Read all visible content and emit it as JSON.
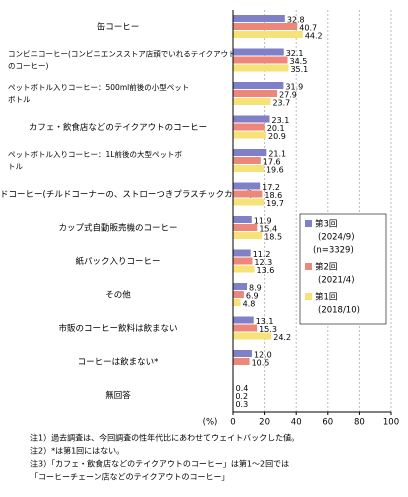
{
  "chart_data": {
    "type": "barh",
    "categories": [
      [
        "缶コーヒー"
      ],
      [
        "コンビニコーヒー(コンビニエンスストア店頭でいれるテイクアウト",
        "のコーヒー)"
      ],
      [
        "ペットボトル入りコーヒー：500ml前後の小型ペット",
        "ボトル"
      ],
      [
        "カフェ・飲食店などのテイクアウトのコーヒー"
      ],
      [
        "ペットボトル入りコーヒー：1L前後の大型ペットボ",
        "トル"
      ],
      [
        "チルドコーヒー(チルドコーナーの、ストローつきプラスチックカップ)"
      ],
      [
        "カップ式自動販売機のコーヒー"
      ],
      [
        "紙パック入りコーヒー"
      ],
      [
        "その他"
      ],
      [
        "市販のコーヒー飲料は飲まない"
      ],
      [
        "コーヒーは飲まない*"
      ],
      [
        "無回答"
      ]
    ],
    "series": [
      {
        "name": "第3回",
        "period": "(2024/9)",
        "n": "(n=3329)",
        "color": "#7f80c8",
        "values": [
          32.8,
          32.1,
          31.9,
          23.1,
          21.1,
          17.2,
          11.9,
          11.2,
          8.9,
          13.1,
          12.0,
          0.4
        ],
        "value_labels": [
          "32.8",
          "32.1",
          "31.9",
          "23.1",
          "21.1",
          "17.2",
          "11.9",
          "11.2",
          "8.9",
          "13.1",
          "12.0",
          "0.4"
        ]
      },
      {
        "name": "第2回",
        "period": "(2021/4)",
        "color": "#ec8779",
        "values": [
          40.7,
          34.5,
          27.9,
          20.1,
          17.6,
          18.6,
          15.4,
          12.3,
          6.9,
          15.3,
          10.5,
          0.2
        ]
      },
      {
        "name": "第1回",
        "period": "(2018/10)",
        "color": "#f7e277",
        "values": [
          44.2,
          35.1,
          23.7,
          20.9,
          19.6,
          19.7,
          18.5,
          13.6,
          4.8,
          24.2,
          null,
          0.3
        ]
      }
    ],
    "xlim": [
      0,
      100
    ],
    "xticks": [
      0,
      20,
      40,
      60,
      80,
      100
    ],
    "xlabel": "(%)",
    "notes": [
      "注1）過去調査は、今回調査の性年代比にあわせてウェイトバックした値。",
      "注2）*は第1回にはない。",
      "注3）「カフェ・飲食店などのテイクアウトのコーヒー」は第1～2回では",
      "「コーヒーチェーン店などのテイクアウトのコーヒー」"
    ]
  }
}
